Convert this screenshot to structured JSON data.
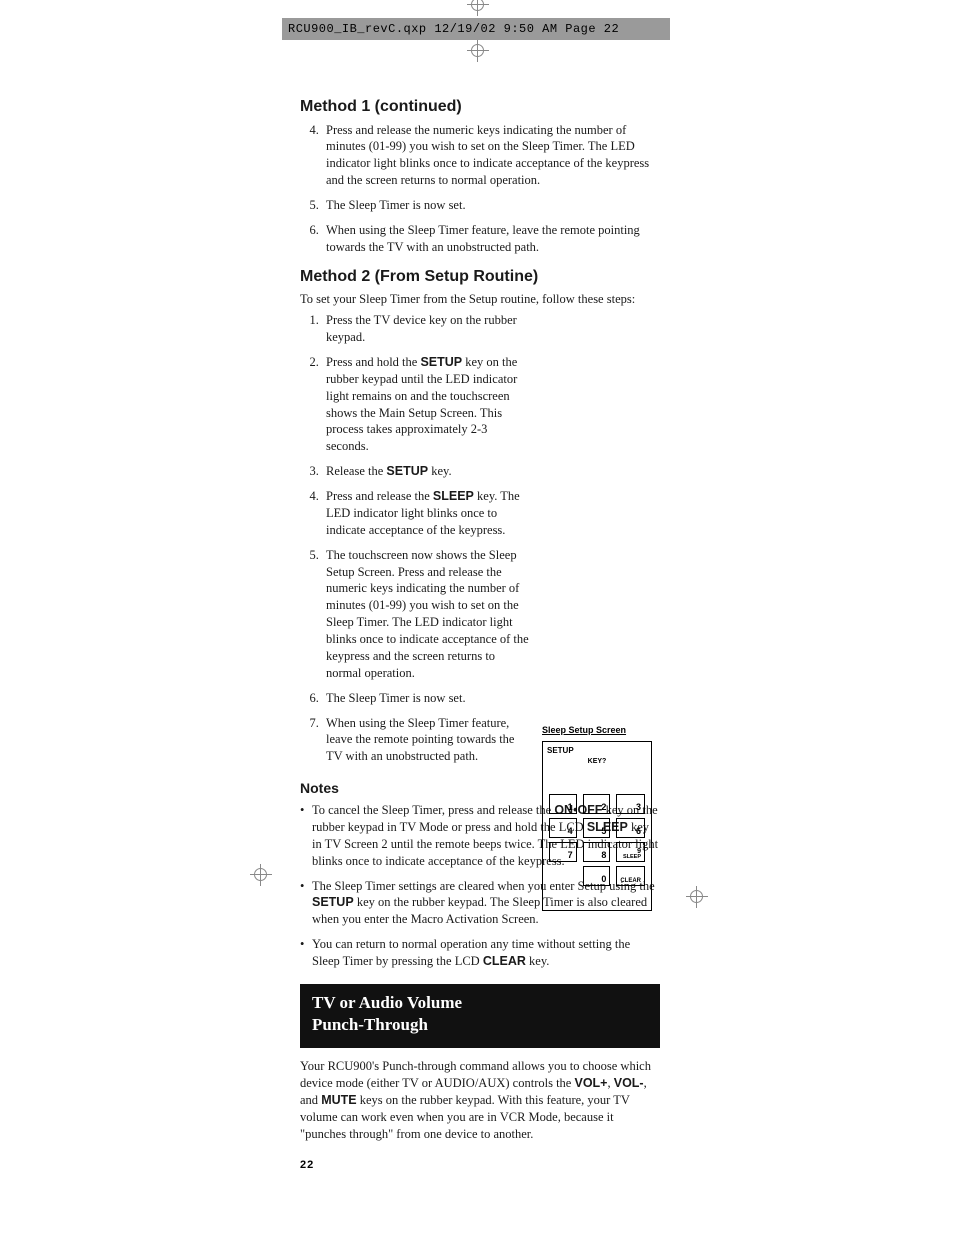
{
  "header_text": "RCU900_IB_revC.qxp  12/19/02  9:50 AM  Page 22",
  "page_number": "22",
  "method1": {
    "title": "Method 1 (continued)",
    "start": 4,
    "items": [
      "Press and release the numeric keys indicating the number of minutes (01-99) you wish to set on the Sleep Timer. The LED indicator light blinks once to indicate acceptance of the keypress and the screen returns to normal operation.",
      "The Sleep Timer is now set.",
      "When using the Sleep Timer feature, leave the remote pointing towards the TV with an unobstructed path."
    ]
  },
  "method2": {
    "title": "Method 2 (From Setup Routine)",
    "intro": "To set your Sleep Timer from the Setup routine, follow these steps:",
    "items": {
      "i1": "Press the TV device key on the rubber keypad.",
      "i2a": "Press and hold the ",
      "i2b": "SETUP",
      "i2c": " key on the rubber keypad until the LED indicator light remains on and the touchscreen shows the Main Setup Screen. This process takes approximately 2-3 seconds.",
      "i3a": "Release the ",
      "i3b": "SETUP",
      "i3c": " key.",
      "i4a": "Press and release the ",
      "i4b": "SLEEP",
      "i4c": " key. The LED indicator light blinks once to indicate acceptance of the keypress.",
      "i5": "The touchscreen now shows the Sleep Setup Screen. Press and release the numeric keys indicating the number of minutes (01-99) you wish to set on the Sleep Timer. The LED indicator light blinks once to indicate acceptance of the keypress and the screen returns to normal operation.",
      "i6": "The Sleep Timer is now set.",
      "i7": "When using the Sleep Timer feature, leave the remote pointing towards the TV with an unobstructed path."
    }
  },
  "notes": {
    "title": "Notes",
    "n1a": "To cancel the Sleep Timer, press and release the ",
    "n1b": "ON•OFF",
    "n1c": " key on the rubber keypad in TV Mode or press and hold the LCD ",
    "n1d": "SLEEP",
    "n1e": " key in TV Screen 2 until the remote beeps twice. The LED indicator light blinks once to indicate acceptance of the keypress.",
    "n2a": "The Sleep Timer settings are cleared when you enter Setup using the ",
    "n2b": "SETUP",
    "n2c": " key on the rubber keypad. The Sleep Timer is also cleared when you enter the Macro Activation Screen.",
    "n3a": "You can return to normal operation any time without setting the Sleep Timer by pressing the LCD ",
    "n3b": "CLEAR",
    "n3c": " key."
  },
  "punch": {
    "title_l1": "TV or Audio Volume",
    "title_l2": "Punch-Through",
    "para_a": "Your RCU900's Punch-through command allows you to choose which device mode (either TV or AUDIO/AUX) controls the ",
    "vol_plus": "VOL+",
    "comma1": ", ",
    "vol_minus": "VOL-",
    "comma2": ", and ",
    "mute": "MUTE",
    "para_b": " keys on the rubber keypad. With this feature, your TV volume can work even when you are in VCR Mode, because it \"punches through\" from one device to another."
  },
  "diagram": {
    "caption": "Sleep Setup Screen",
    "setup": "SETUP",
    "key_q": "KEY?",
    "k1": "1",
    "k2": "2",
    "k3": "3",
    "k4": "4",
    "k5": "5",
    "k6": "6",
    "k7": "7",
    "k8": "8",
    "k9": "9",
    "k9l": "SLEEP",
    "k0": "0",
    "kClear": "CLEAR"
  }
}
